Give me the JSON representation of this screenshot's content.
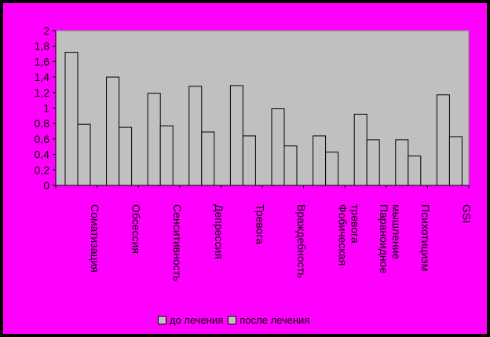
{
  "chart_data": {
    "type": "bar",
    "categories": [
      "Соматизация",
      "Обсессия",
      "Сенситивность",
      "Депрессия",
      "Тревога",
      "Враждебность",
      "Фобическая тревога",
      "Параноидное мышление",
      "Психотицизм",
      "GSI"
    ],
    "category_lines": [
      [
        "Соматизация"
      ],
      [
        "Обсессия"
      ],
      [
        "Сенситивность"
      ],
      [
        "Депрессия"
      ],
      [
        "Тревога"
      ],
      [
        "Враждебность"
      ],
      [
        "Фобическая",
        "тревога"
      ],
      [
        "Параноидное",
        "мышление"
      ],
      [
        "Психотицизм"
      ],
      [
        "GSI"
      ]
    ],
    "series": [
      {
        "name": "до лечения",
        "values": [
          1.72,
          1.4,
          1.19,
          1.28,
          1.29,
          0.99,
          0.64,
          0.92,
          0.59,
          1.17
        ]
      },
      {
        "name": "после лечения",
        "values": [
          0.79,
          0.75,
          0.77,
          0.69,
          0.64,
          0.51,
          0.43,
          0.59,
          0.38,
          0.63
        ]
      }
    ],
    "ylim": [
      0,
      2
    ],
    "yticks": [
      "0",
      "0,2",
      "0,4",
      "0,6",
      "0,8",
      "1",
      "1,2",
      "1,4",
      "1,6",
      "1,8",
      "2"
    ],
    "grid": false,
    "legend_position": "bottom",
    "colors": {
      "background": "#ff00ff",
      "plot_area": "#c0c0c0",
      "bars": "#c0c0c0",
      "outline": "#000000"
    }
  }
}
